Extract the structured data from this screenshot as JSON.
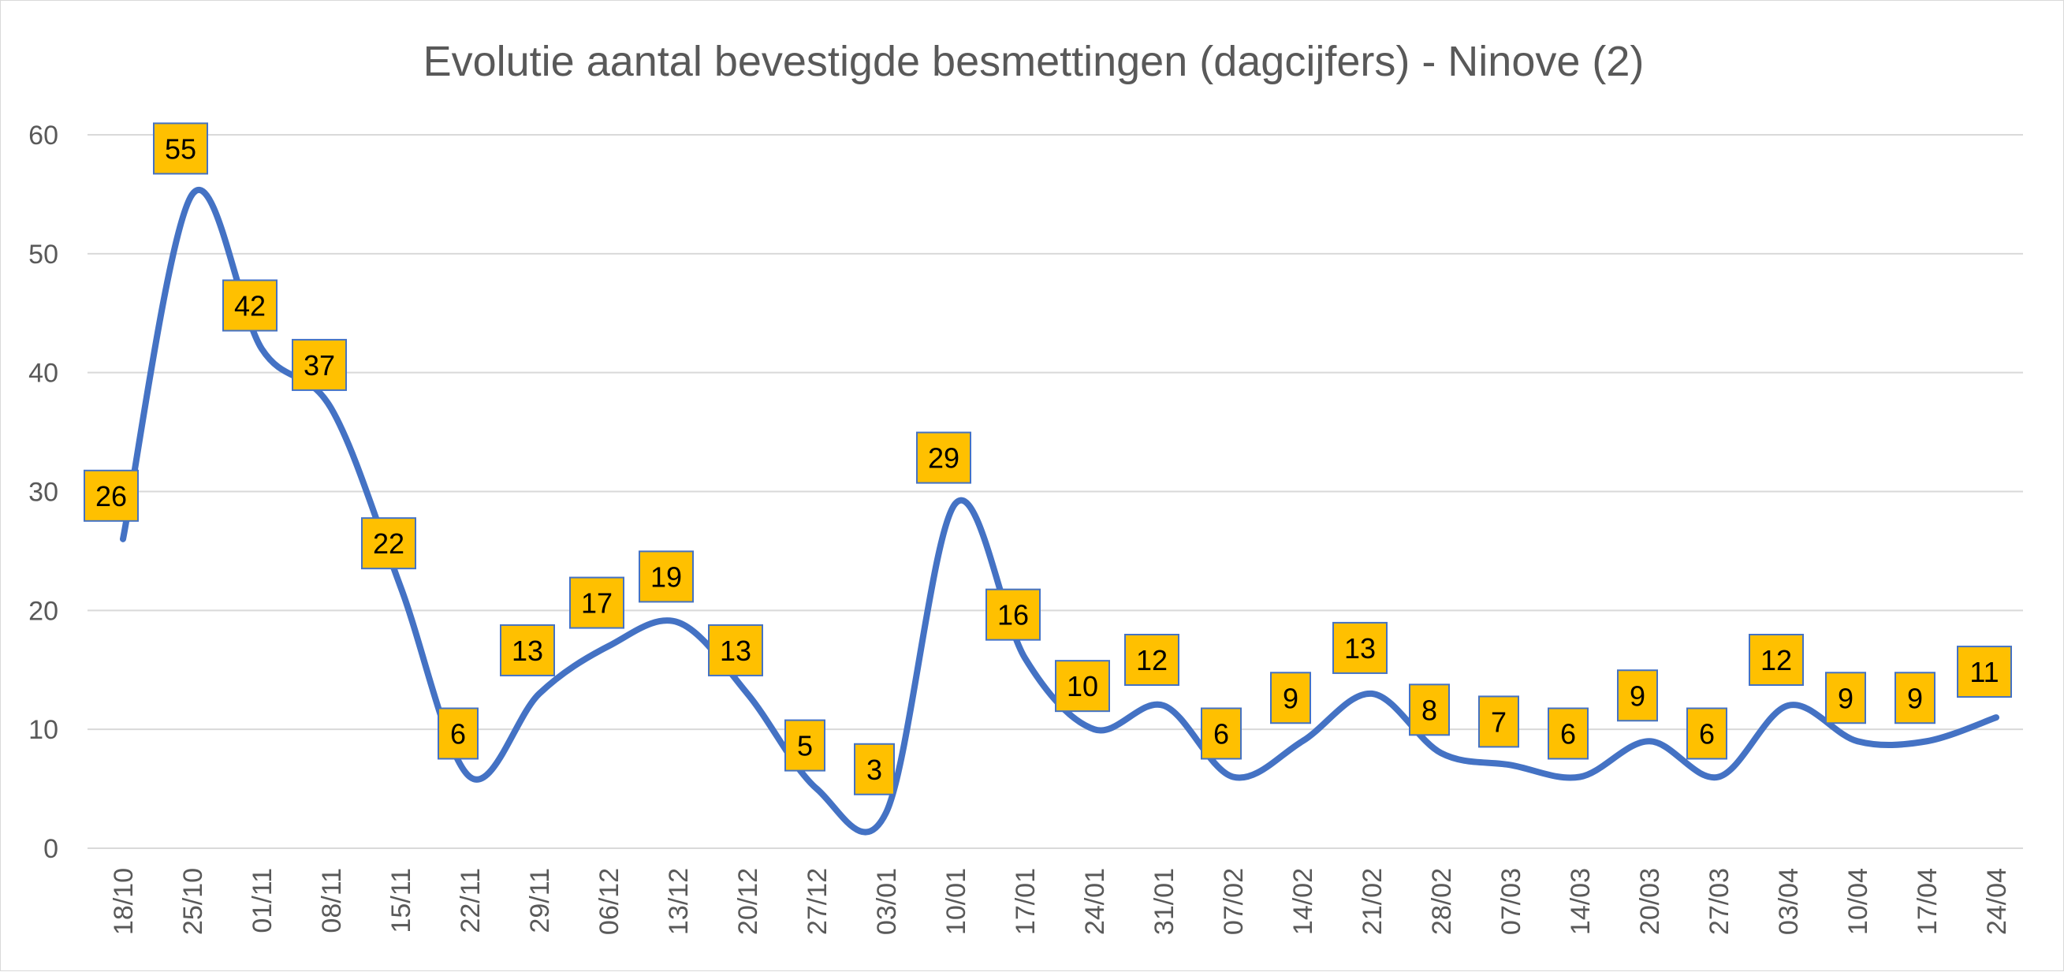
{
  "chart_data": {
    "type": "line",
    "title": "Evolutie aantal bevestigde besmettingen (dagcijfers) - Ninove (2)",
    "xlabel": "",
    "ylabel": "",
    "ylim": [
      0,
      60
    ],
    "yticks": [
      0,
      10,
      20,
      30,
      40,
      50,
      60
    ],
    "grid": true,
    "legend": "none",
    "smooth": true,
    "line_color": "#4472c4",
    "label_fill": "#ffc000",
    "categories": [
      "18/10",
      "25/10",
      "01/11",
      "08/11",
      "15/11",
      "22/11",
      "29/11",
      "06/12",
      "13/12",
      "20/12",
      "27/12",
      "03/01",
      "10/01",
      "17/01",
      "24/01",
      "31/01",
      "07/02",
      "14/02",
      "21/02",
      "28/02",
      "07/03",
      "14/03",
      "20/03",
      "27/03",
      "03/04",
      "10/04",
      "17/04",
      "24/04"
    ],
    "series": [
      {
        "values": [
          26,
          55,
          42,
          37,
          22,
          6,
          13,
          17,
          19,
          13,
          5,
          3,
          29,
          16,
          10,
          12,
          6,
          9,
          13,
          8,
          7,
          6,
          9,
          6,
          12,
          9,
          9,
          11
        ]
      }
    ]
  }
}
